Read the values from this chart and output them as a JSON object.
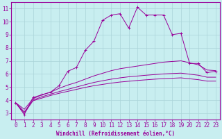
{
  "xlabel": "Windchill (Refroidissement éolien,°C)",
  "bg_color": "#c8eef0",
  "grid_color": "#aad4d8",
  "line_color": "#990099",
  "xlim": [
    -0.5,
    23.5
  ],
  "ylim": [
    2.5,
    11.5
  ],
  "xticks": [
    0,
    1,
    2,
    3,
    4,
    5,
    6,
    7,
    8,
    9,
    10,
    11,
    12,
    13,
    14,
    15,
    16,
    17,
    18,
    19,
    20,
    21,
    22,
    23
  ],
  "yticks": [
    3,
    4,
    5,
    6,
    7,
    8,
    9,
    10,
    11
  ],
  "line1_x": [
    0,
    1,
    2,
    3,
    4,
    5,
    6,
    7,
    8,
    9,
    10,
    11,
    12,
    13,
    14,
    15,
    16,
    17,
    18,
    19,
    20,
    21,
    22,
    23
  ],
  "line1_y": [
    3.8,
    2.9,
    4.2,
    4.4,
    4.6,
    5.1,
    6.2,
    6.5,
    7.8,
    8.5,
    10.1,
    10.5,
    10.6,
    9.5,
    11.1,
    10.5,
    10.5,
    10.5,
    9.0,
    9.1,
    6.8,
    6.8,
    6.1,
    6.2
  ],
  "line2_x": [
    0,
    1,
    2,
    3,
    4,
    5,
    6,
    7,
    8,
    9,
    10,
    11,
    12,
    13,
    14,
    15,
    16,
    17,
    18,
    19,
    20,
    21,
    22,
    23
  ],
  "line2_y": [
    3.8,
    3.3,
    4.1,
    4.4,
    4.6,
    4.9,
    5.15,
    5.35,
    5.6,
    5.85,
    6.05,
    6.25,
    6.4,
    6.5,
    6.6,
    6.7,
    6.8,
    6.9,
    6.95,
    7.0,
    6.85,
    6.7,
    6.3,
    6.25
  ],
  "line3_x": [
    0,
    1,
    2,
    3,
    4,
    5,
    6,
    7,
    8,
    9,
    10,
    11,
    12,
    13,
    14,
    15,
    16,
    17,
    18,
    19,
    20,
    21,
    22,
    23
  ],
  "line3_y": [
    3.8,
    3.1,
    4.0,
    4.25,
    4.45,
    4.65,
    4.82,
    5.0,
    5.18,
    5.35,
    5.48,
    5.6,
    5.7,
    5.78,
    5.84,
    5.9,
    5.95,
    6.0,
    6.03,
    6.06,
    5.98,
    5.9,
    5.75,
    5.75
  ],
  "line4_x": [
    0,
    1,
    2,
    3,
    4,
    5,
    6,
    7,
    8,
    9,
    10,
    11,
    12,
    13,
    14,
    15,
    16,
    17,
    18,
    19,
    20,
    21,
    22,
    23
  ],
  "line4_y": [
    3.8,
    3.0,
    3.95,
    4.15,
    4.35,
    4.52,
    4.67,
    4.82,
    4.97,
    5.1,
    5.2,
    5.3,
    5.38,
    5.44,
    5.5,
    5.55,
    5.6,
    5.64,
    5.67,
    5.7,
    5.63,
    5.56,
    5.45,
    5.45
  ],
  "xlabel_fontsize": 5.5,
  "tick_fontsize": 5.5
}
